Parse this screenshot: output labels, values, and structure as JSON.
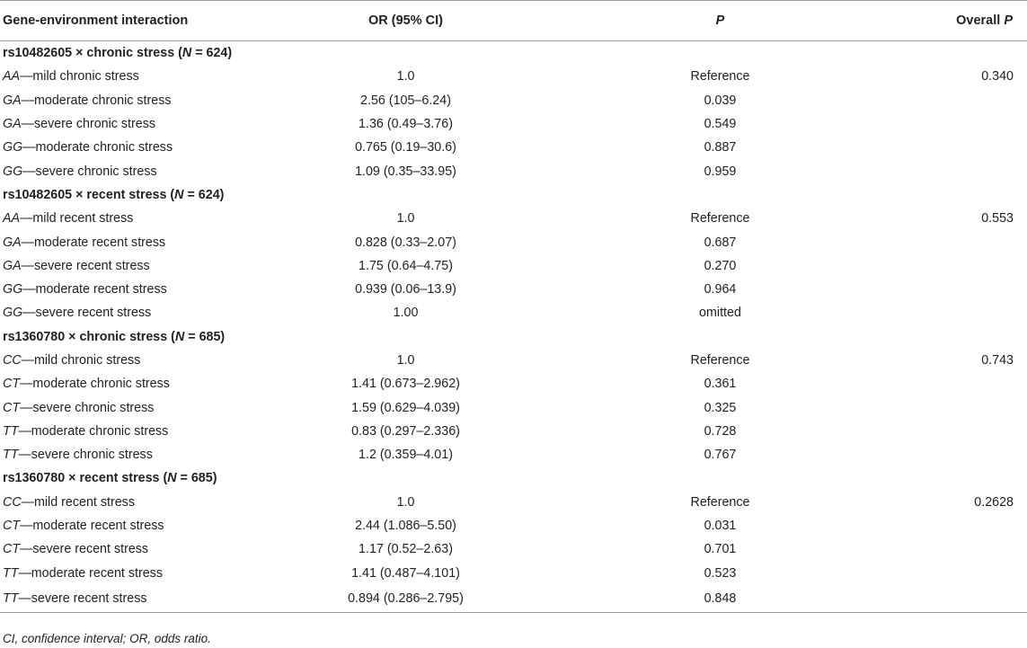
{
  "headers": {
    "col1": "Gene-environment interaction",
    "col2": "OR (95% CI)",
    "col3": "P",
    "col4_prefix": "Overall ",
    "col4_italic": "P"
  },
  "groups": [
    {
      "label_prefix": "rs10482605 × chronic stress (",
      "label_n": "N",
      "label_suffix": " = 624)",
      "rows": [
        {
          "geno": "AA",
          "desc": "—mild chronic stress",
          "or": "1.0",
          "p": "Reference",
          "overall": "0.340"
        },
        {
          "geno": "GA",
          "desc": "—moderate chronic stress",
          "or": "2.56 (105–6.24)",
          "p": "0.039",
          "overall": ""
        },
        {
          "geno": "GA",
          "desc": "—severe chronic stress",
          "or": "1.36 (0.49–3.76)",
          "p": "0.549",
          "overall": ""
        },
        {
          "geno": "GG",
          "desc": "—moderate chronic stress",
          "or": "0.765 (0.19–30.6)",
          "p": "0.887",
          "overall": ""
        },
        {
          "geno": "GG",
          "desc": "—severe chronic stress",
          "or": "1.09 (0.35–33.95)",
          "p": "0.959",
          "overall": ""
        }
      ]
    },
    {
      "label_prefix": "rs10482605 × recent stress (",
      "label_n": "N",
      "label_suffix": " = 624)",
      "rows": [
        {
          "geno": "AA",
          "desc": "—mild recent stress",
          "or": "1.0",
          "p": "Reference",
          "overall": "0.553"
        },
        {
          "geno": "GA",
          "desc": "—moderate recent stress",
          "or": "0.828 (0.33–2.07)",
          "p": "0.687",
          "overall": ""
        },
        {
          "geno": "GA",
          "desc": "—severe recent stress",
          "or": "1.75 (0.64–4.75)",
          "p": "0.270",
          "overall": ""
        },
        {
          "geno": "GG",
          "desc": "—moderate recent stress",
          "or": "0.939 (0.06–13.9)",
          "p": "0.964",
          "overall": ""
        },
        {
          "geno": "GG",
          "desc": "—severe recent stress",
          "or": "1.00",
          "p": "omitted",
          "overall": ""
        }
      ]
    },
    {
      "label_prefix": "rs1360780 × chronic stress (",
      "label_n": "N",
      "label_suffix": " = 685)",
      "rows": [
        {
          "geno": "CC",
          "desc": "—mild chronic stress",
          "or": "1.0",
          "p": "Reference",
          "overall": "0.743"
        },
        {
          "geno": "CT",
          "desc": "—moderate chronic stress",
          "or": "1.41 (0.673–2.962)",
          "p": "0.361",
          "overall": ""
        },
        {
          "geno": "CT",
          "desc": "—severe chronic stress",
          "or": "1.59 (0.629–4.039)",
          "p": "0.325",
          "overall": ""
        },
        {
          "geno": "TT",
          "desc": "—moderate chronic stress",
          "or": "0.83 (0.297–2.336)",
          "p": "0.728",
          "overall": ""
        },
        {
          "geno": "TT",
          "desc": "—severe chronic stress",
          "or": "1.2 (0.359–4.01)",
          "p": "0.767",
          "overall": ""
        }
      ]
    },
    {
      "label_prefix": "rs1360780 × recent stress (",
      "label_n": "N",
      "label_suffix": " = 685)",
      "rows": [
        {
          "geno": "CC",
          "desc": "—mild recent stress",
          "or": "1.0",
          "p": "Reference",
          "overall": "0.2628"
        },
        {
          "geno": "CT",
          "desc": "—moderate recent stress",
          "or": "2.44 (1.086–5.50)",
          "p": "0.031",
          "overall": ""
        },
        {
          "geno": "CT",
          "desc": "—severe recent stress",
          "or": "1.17 (0.52–2.63)",
          "p": "0.701",
          "overall": ""
        },
        {
          "geno": "TT",
          "desc": "—moderate recent stress",
          "or": "1.41 (0.487–4.101)",
          "p": "0.523",
          "overall": ""
        },
        {
          "geno": "TT",
          "desc": "—severe recent stress",
          "or": "0.894 (0.286–2.795)",
          "p": "0.848",
          "overall": ""
        }
      ]
    }
  ],
  "footnote": "CI, confidence interval; OR, odds ratio."
}
